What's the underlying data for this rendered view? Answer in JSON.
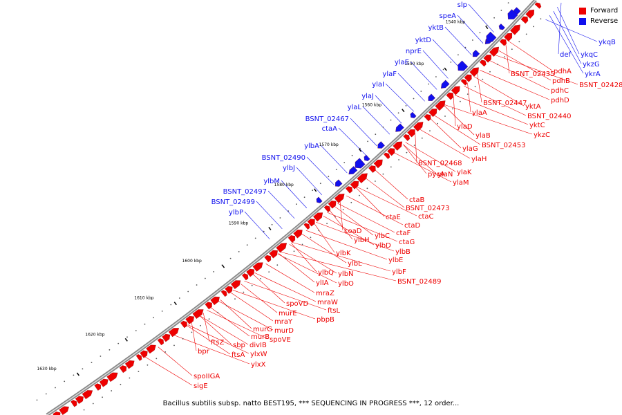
{
  "legend": [
    {
      "label": "Forward",
      "color": "#ee0000"
    },
    {
      "label": "Reverse",
      "color": "#1010ee"
    }
  ],
  "caption": "Bacillus subtilis subsp. natto BEST195, *** SEQUENCING IN PROGRESS ***, 12 order...",
  "colors": {
    "forward": "#ee0000",
    "reverse": "#1010ee",
    "backbone": "#888888"
  },
  "kbp_ticks": [
    "1540 kbp",
    "1550 kbp",
    "1560 kbp",
    "1570 kbp",
    "1580 kbp",
    "1590 kbp",
    "1600 kbp",
    "1610 kbp",
    "1620 kbp",
    "1630 kbp"
  ],
  "reverse_labels": [
    "slp",
    "speA",
    "yktB",
    "yktD",
    "nprE",
    "ylaE",
    "ylaF",
    "ylaI",
    "ylaJ",
    "ylaL",
    "BSNT_02467",
    "ctaA",
    "ylbA",
    "BSNT_02490",
    "ylbJ",
    "ylbM",
    "BSNT_02497",
    "BSNT_02499",
    "ylbP"
  ],
  "reverse_right_labels": [
    "def",
    "ykqC",
    "ykzG",
    "ykrA",
    "ykqB"
  ],
  "forward_labels": [
    "pdhA",
    "BSNT_02435",
    "pdhB",
    "BSNT_02428",
    "pdhC",
    "pdhD",
    "BSNT_02447",
    "yktA",
    "BSNT_02440",
    "yktC",
    "ykzC",
    "ylaA",
    "ylaD",
    "ylaB",
    "BSNT_02453",
    "ylaG",
    "ylaH",
    "BSNT_02468",
    "ylaK",
    "ylaN",
    "pycA",
    "ylaM",
    "ctaB",
    "BSNT_02473",
    "ctaE",
    "ctaC",
    "ctaD",
    "coaD",
    "ctaF",
    "ylbC",
    "ctaG",
    "ylbH",
    "ylbD",
    "ylbB",
    "ylbK",
    "ylbE",
    "ylbL",
    "ylbF",
    "ylbQ",
    "ylbN",
    "BSNT_02489",
    "ylIA",
    "ylbO",
    "mraZ",
    "mraW",
    "spoVD",
    "ftsL",
    "murE",
    "pbpB",
    "mraY",
    "murG",
    "murD",
    "murB",
    "spoVE",
    "ftsZ",
    "sbp",
    "divIB",
    "bpr",
    "ftsA",
    "ylxW",
    "ylxX",
    "spoIIGA",
    "sigE"
  ]
}
